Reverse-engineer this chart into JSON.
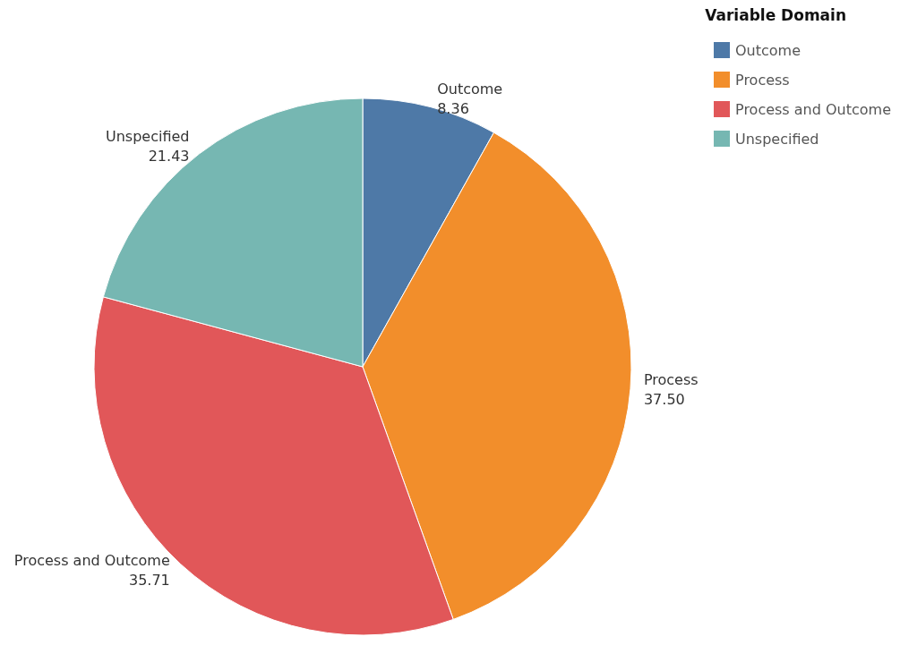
{
  "chart_data": {
    "type": "pie",
    "categories": [
      "Outcome",
      "Process",
      "Process and Outcome",
      "Unspecified"
    ],
    "values": [
      8.36,
      37.5,
      35.71,
      21.43
    ],
    "value_labels": [
      "8.36",
      "37.50",
      "35.71",
      "21.43"
    ],
    "colors": [
      "#4e79a7",
      "#f28e2b",
      "#e15759",
      "#76b7b2"
    ],
    "legend_title": "Variable Domain",
    "legend": "top right"
  }
}
